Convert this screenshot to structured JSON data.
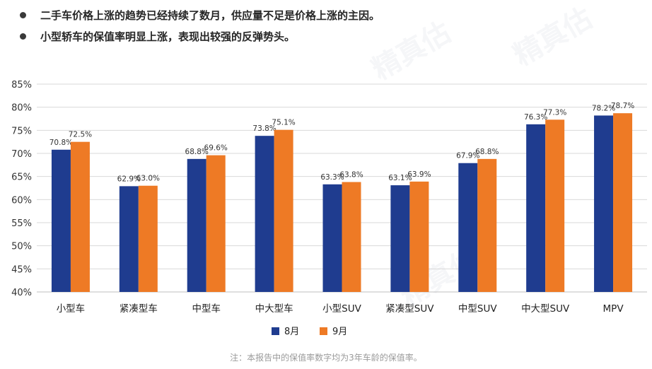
{
  "bullets": [
    "二手车价格上涨的趋势已经持续了数月，供应量不足是价格上涨的主因。",
    "小型轿车的保值率明显上涨，表现出较强的反弹势头。"
  ],
  "watermark": "精真估",
  "note": "注：本报告中的保值率数字均为3年车龄的保值率。",
  "colors": {
    "aug": "#1f3c8f",
    "sep": "#ee7a25",
    "grid": "#d9d9d9"
  },
  "chart_data": {
    "type": "bar",
    "categories": [
      "小型车",
      "紧凑型车",
      "中型车",
      "中大型车",
      "小型SUV",
      "紧凑型SUV",
      "中型SUV",
      "中大型SUV",
      "MPV"
    ],
    "series": [
      {
        "name": "8月",
        "values": [
          70.8,
          62.9,
          68.8,
          73.8,
          63.3,
          63.1,
          67.9,
          76.3,
          78.2
        ]
      },
      {
        "name": "9月",
        "values": [
          72.5,
          63.0,
          69.6,
          75.1,
          63.8,
          63.9,
          68.8,
          77.3,
          78.7
        ]
      }
    ],
    "data_labels": [
      [
        "70.8%",
        "62.9%",
        "68.8%",
        "73.8%",
        "63.3%",
        "63.1%",
        "67.9%",
        "76.3%",
        "78.2%"
      ],
      [
        "72.5%",
        "63.0%",
        "69.6%",
        "75.1%",
        "63.8%",
        "63.9%",
        "68.8%",
        "77.3%",
        "78.7%"
      ]
    ],
    "ylim": [
      40,
      85
    ],
    "yticks": [
      40,
      45,
      50,
      55,
      60,
      65,
      70,
      75,
      80,
      85
    ],
    "ytick_labels": [
      "40%",
      "45%",
      "50%",
      "55%",
      "60%",
      "65%",
      "70%",
      "75%",
      "80%",
      "85%"
    ],
    "grid": true,
    "legend": "bottom-center",
    "title": "",
    "xlabel": "",
    "ylabel": ""
  }
}
